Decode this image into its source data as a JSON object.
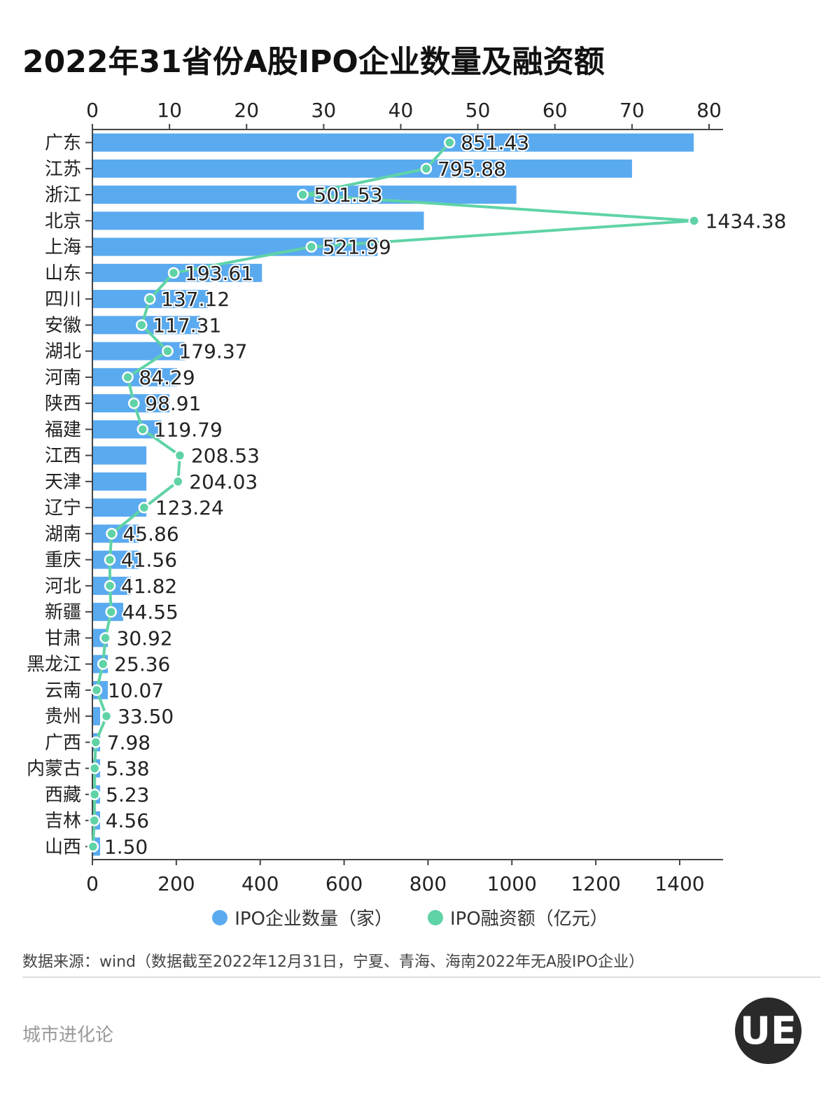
{
  "title": "2022年31省份A股IPO企业数量及融资额",
  "colors": {
    "bar": "#5aaaf0",
    "line": "#5fd3a6"
  },
  "chart_data": {
    "type": "bar",
    "orientation": "horizontal",
    "title": "2022年31省份A股IPO企业数量及融资额",
    "categories": [
      "广东",
      "江苏",
      "浙江",
      "北京",
      "上海",
      "山东",
      "四川",
      "安徽",
      "湖北",
      "河南",
      "陕西",
      "福建",
      "江西",
      "天津",
      "辽宁",
      "湖南",
      "重庆",
      "河北",
      "新疆",
      "甘肃",
      "黑龙江",
      "云南",
      "贵州",
      "广西",
      "内蒙古",
      "西藏",
      "吉林",
      "山西"
    ],
    "series": [
      {
        "name": "IPO企业数量（家）",
        "type": "bar",
        "axis": "top",
        "values": [
          78,
          70,
          55,
          43,
          37,
          22,
          15,
          14,
          12,
          11,
          10,
          9,
          7,
          7,
          7,
          6,
          6,
          5,
          4,
          2,
          2,
          2,
          1,
          1,
          1,
          1,
          1,
          1
        ]
      },
      {
        "name": "IPO融资额（亿元）",
        "type": "line",
        "axis": "bottom",
        "values": [
          851.43,
          795.88,
          501.53,
          1434.38,
          521.99,
          193.61,
          137.12,
          117.31,
          179.37,
          84.29,
          98.91,
          119.79,
          208.53,
          204.03,
          123.24,
          45.86,
          41.56,
          41.82,
          44.55,
          30.92,
          25.36,
          10.07,
          33.5,
          7.98,
          5.38,
          5.23,
          4.56,
          1.5
        ],
        "labels": [
          "851.43",
          "795.88",
          "501.53",
          "1434.38",
          "521.99",
          "193.61",
          "137.12",
          "117.31",
          "179.37",
          "84.29",
          "98.91",
          "119.79",
          "208.53",
          "204.03",
          "123.24",
          "45.86",
          "41.56",
          "41.82",
          "44.55",
          "30.92",
          "25.36",
          "10.07",
          "33.50",
          "7.98",
          "5.38",
          "5.23",
          "4.56",
          "1.50"
        ]
      }
    ],
    "top_axis": {
      "range": [
        0,
        82
      ],
      "ticks": [
        "0",
        "10",
        "20",
        "30",
        "40",
        "50",
        "60",
        "70",
        "80"
      ]
    },
    "bottom_axis": {
      "range": [
        0,
        1505
      ],
      "ticks": [
        "0",
        "200",
        "400",
        "600",
        "800",
        "1000",
        "1200",
        "1400"
      ]
    },
    "grid": false,
    "legend": "bottom"
  },
  "legend": {
    "bar": "IPO企业数量（家）",
    "line": "IPO融资额（亿元）"
  },
  "source": "数据来源：wind（数据截至2022年12月31日，宁夏、青海、海南2022年无A股IPO企业）",
  "brand": "城市进化论",
  "logo": "UE"
}
